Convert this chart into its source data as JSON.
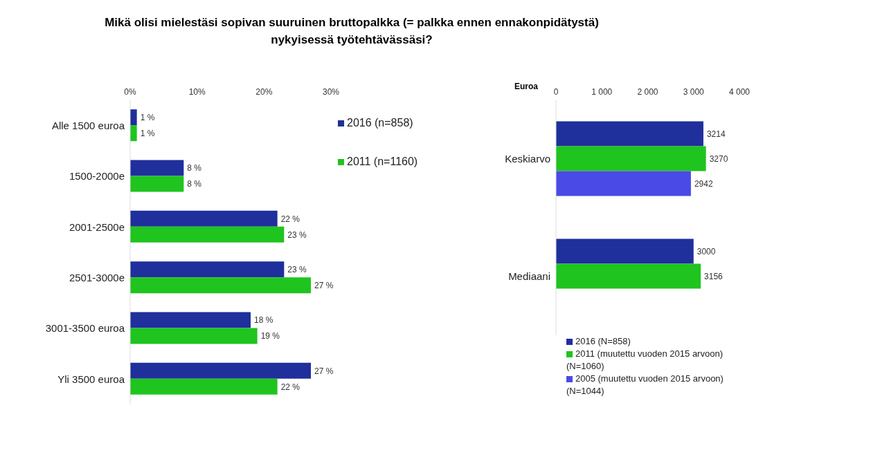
{
  "chart_data": [
    {
      "type": "bar",
      "title": "Mikä olisi mielestäsi sopivan suuruinen bruttopalkka (= palkka ennen ennakonpidätystä) nykyisessä työtehtävässäsi?",
      "orientation": "horizontal",
      "categories": [
        "Alle 1500 euroa",
        "1500-2000e",
        "2001-2500e",
        "2501-3000e",
        "3001-3500 euroa",
        "Yli 3500 euroa"
      ],
      "series": [
        {
          "name": "2016 (n=858)",
          "color": "#1f2f9c",
          "values": [
            1,
            8,
            22,
            23,
            18,
            27
          ],
          "value_labels": [
            "1 %",
            "8 %",
            "22 %",
            "23 %",
            "18 %",
            "27 %"
          ]
        },
        {
          "name": "2011 (n=1160)",
          "color": "#1fc41f",
          "values": [
            1,
            8,
            23,
            27,
            19,
            22
          ],
          "value_labels": [
            "1 %",
            "8 %",
            "23 %",
            "27 %",
            "19 %",
            "22 %"
          ]
        }
      ],
      "xlim": [
        0,
        30
      ],
      "xticks": [
        {
          "value": 0,
          "label": "0%"
        },
        {
          "value": 10,
          "label": "10%"
        },
        {
          "value": 20,
          "label": "20%"
        },
        {
          "value": 30,
          "label": "30%"
        }
      ],
      "legend": "right",
      "grid": false
    },
    {
      "type": "bar",
      "orientation": "horizontal",
      "xlabel": "Euroa",
      "categories": [
        "Keskiarvo",
        "Mediaani"
      ],
      "series": [
        {
          "name": "2016 (N=858)",
          "color": "#1f2f9c",
          "values": [
            3214,
            3000
          ]
        },
        {
          "name": "2011 (muutettu vuoden 2015 arvoon) (N=1060)",
          "color": "#1fc41f",
          "values": [
            3270,
            3156
          ]
        },
        {
          "name": "2005 (muutettu vuoden  2015 arvoon) (N=1044)",
          "color": "#4a4ae6",
          "values": [
            2942,
            null
          ]
        }
      ],
      "xlim": [
        0,
        4000
      ],
      "xticks": [
        0,
        {
          "value": 1000,
          "label": "1 000"
        },
        {
          "value": 2000,
          "label": "2 000"
        },
        {
          "value": 3000,
          "label": "3 000"
        },
        {
          "value": 4000,
          "label": "4 000"
        }
      ],
      "data_labels": true,
      "legend": "bottom",
      "grid": false
    }
  ]
}
